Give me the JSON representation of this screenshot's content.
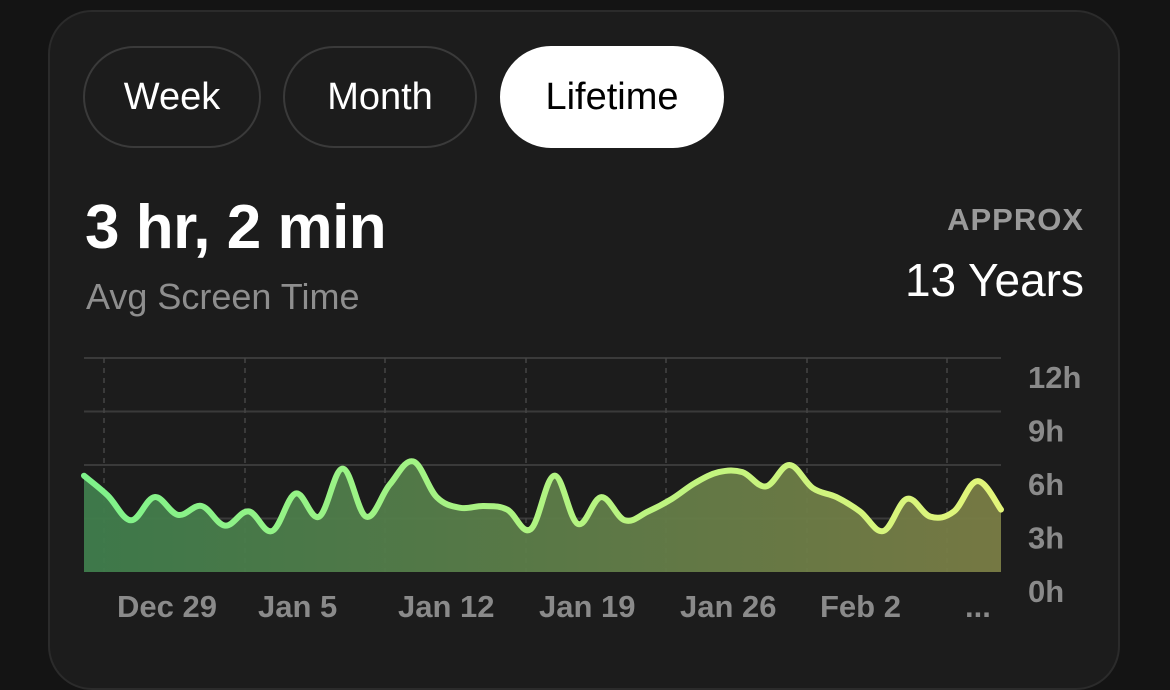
{
  "tabs": [
    {
      "label": "Week",
      "active": false
    },
    {
      "label": "Month",
      "active": false
    },
    {
      "label": "Lifetime",
      "active": true
    }
  ],
  "summary": {
    "value": "3 hr, 2 min",
    "label": "Avg Screen Time"
  },
  "approx": {
    "label": "APPROX",
    "value": "13 Years"
  },
  "colors": {
    "background": "#141414",
    "card": "#1c1c1c",
    "line_start": "#7ef28a",
    "line_end": "#e3f57a",
    "fill_start": "#3f7d4c",
    "fill_end": "#7a7d45"
  },
  "chart_data": {
    "type": "area",
    "x_tick_labels": [
      "Dec 29",
      "Jan 5",
      "Jan 12",
      "Jan 19",
      "Jan 26",
      "Feb 2",
      "..."
    ],
    "y_tick_labels": [
      "12h",
      "9h",
      "6h",
      "3h",
      "0h"
    ],
    "ylim": [
      0,
      12
    ],
    "grid": true,
    "x_start": "Dec 25",
    "y_hours": [
      5.4,
      4.3,
      2.9,
      4.2,
      3.2,
      3.7,
      2.6,
      3.4,
      2.3,
      4.4,
      3.1,
      5.8,
      3.1,
      4.9,
      6.2,
      4.2,
      3.6,
      3.7,
      3.5,
      2.4,
      5.4,
      2.7,
      4.2,
      2.9,
      3.4,
      4.1,
      5.0,
      5.6,
      5.6,
      4.8,
      6.0,
      4.7,
      4.2,
      3.4,
      2.3,
      4.1,
      3.1,
      3.4,
      5.1,
      3.5
    ]
  }
}
